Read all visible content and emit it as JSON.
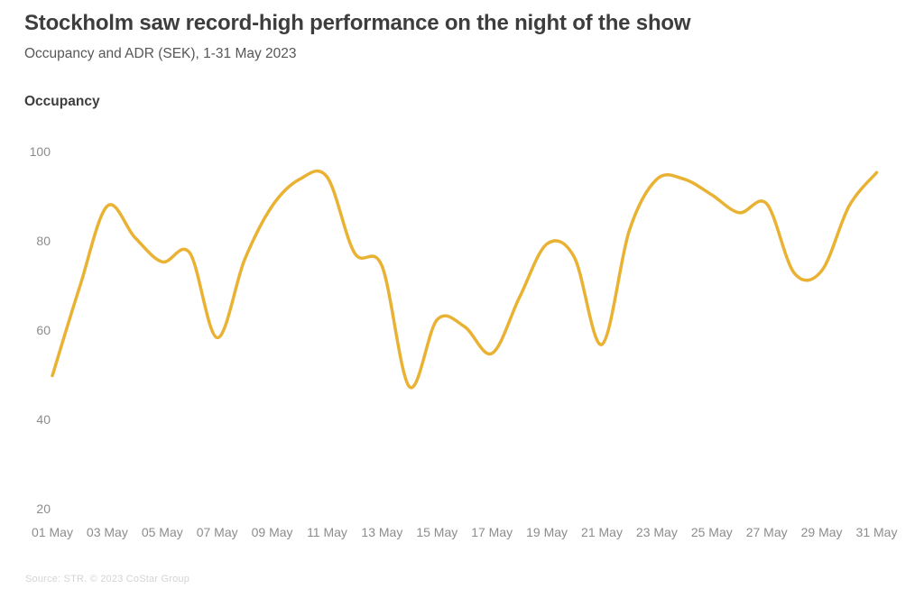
{
  "header": {
    "title": "Stockholm saw record-high performance on the night of the show",
    "subtitle": "Occupancy and ADR (SEK), 1-31 May 2023"
  },
  "source_note": "Source: STR. © 2023 CoStar Group",
  "chart_data": {
    "type": "line",
    "title": "Stockholm saw record-high performance on the night of the show",
    "subtitle": "Occupancy and ADR (SEK), 1-31 May 2023",
    "ylabel": "Occupancy",
    "xlabel": "",
    "ylim": [
      20,
      100
    ],
    "grid": false,
    "legend_position": "none",
    "line_color": "#E9B233",
    "x": [
      "01 May",
      "02 May",
      "03 May",
      "04 May",
      "05 May",
      "06 May",
      "07 May",
      "08 May",
      "09 May",
      "10 May",
      "11 May",
      "12 May",
      "13 May",
      "14 May",
      "15 May",
      "16 May",
      "17 May",
      "18 May",
      "19 May",
      "20 May",
      "21 May",
      "22 May",
      "23 May",
      "24 May",
      "25 May",
      "26 May",
      "27 May",
      "28 May",
      "29 May",
      "30 May",
      "31 May"
    ],
    "series": [
      {
        "name": "Occupancy",
        "values": [
          50,
          70,
          88,
          81,
          75.5,
          77.5,
          58.5,
          76,
          88,
          94,
          94.5,
          77.5,
          74.5,
          47.5,
          62.5,
          61,
          55,
          67.5,
          79.5,
          76.5,
          57,
          82.5,
          94,
          94,
          90.5,
          86.5,
          88.5,
          73,
          73.5,
          88,
          95.5
        ]
      }
    ],
    "y_ticks": [
      100,
      80,
      60,
      40,
      20
    ],
    "x_tick_labels": [
      "01 May",
      "03 May",
      "05 May",
      "07 May",
      "09 May",
      "11 May",
      "13 May",
      "15 May",
      "17 May",
      "19 May",
      "21 May",
      "23 May",
      "25 May",
      "27 May",
      "29 May",
      "31 May"
    ]
  }
}
